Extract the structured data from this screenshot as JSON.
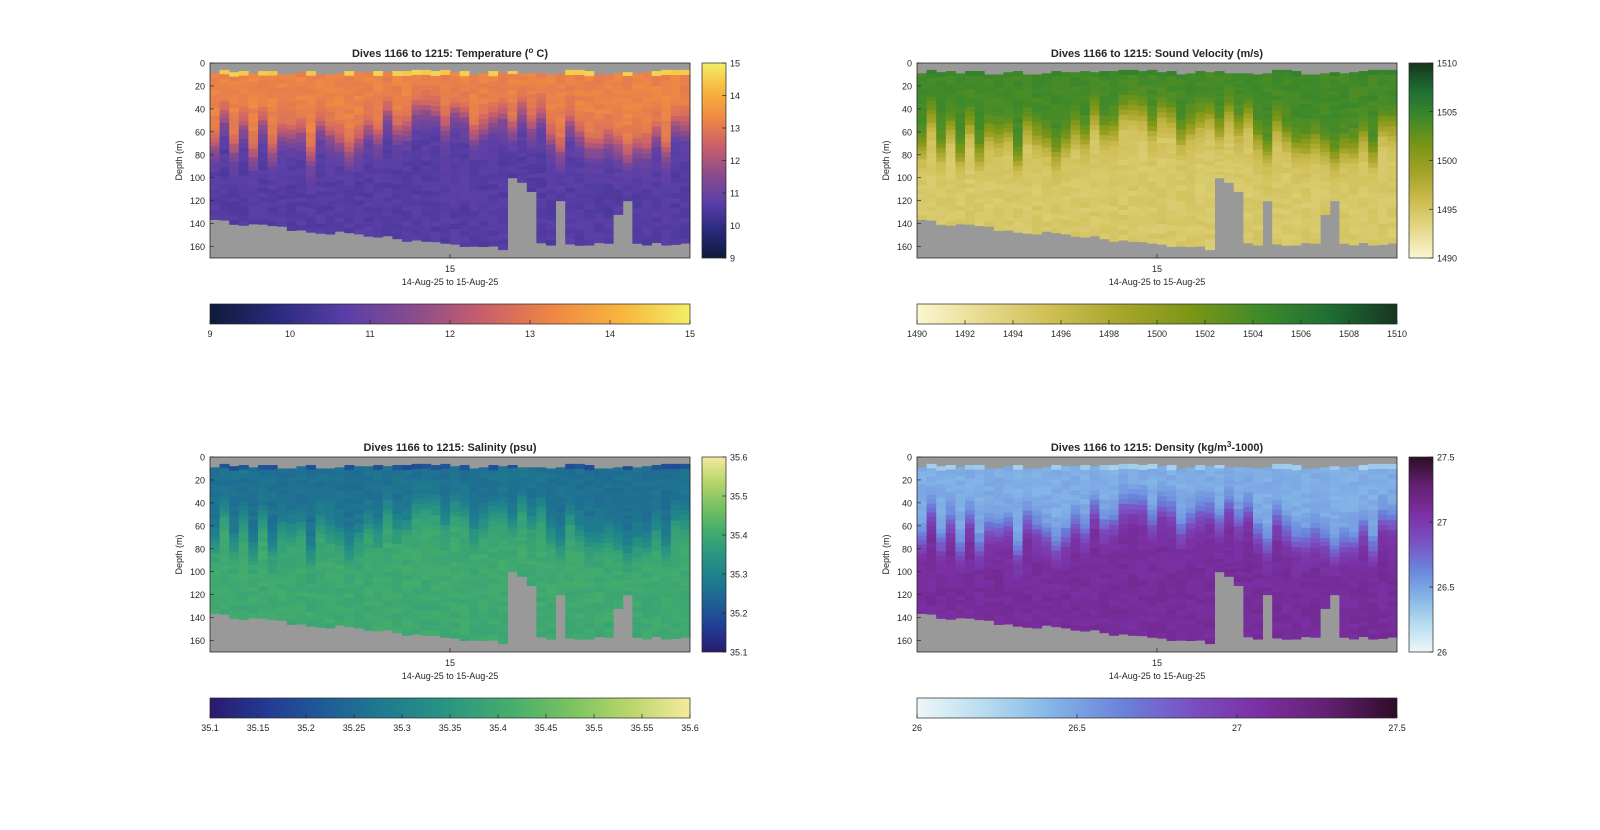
{
  "figure": {
    "dives_label": "Dives 1166 to 1215",
    "depth_label": "Depth (m)",
    "time_label": "14-Aug-25 to 15-Aug-25",
    "time_tick": "15",
    "background": "#ffffff",
    "missing_color": "#999999"
  },
  "chart_data": [
    {
      "type": "heatmap",
      "title_prefix": "Dives 1166 to 1215: Temperature (",
      "title_sup": "o",
      "title_suffix": " C)",
      "xlabel": "14-Aug-25 to 15-Aug-25",
      "ylabel": "Depth (m)",
      "x_ticks": [
        "15"
      ],
      "ylim": [
        0,
        170
      ],
      "y_reversed": true,
      "y_ticks": [
        0,
        20,
        40,
        60,
        80,
        100,
        120,
        140,
        160
      ],
      "clim": [
        9,
        15
      ],
      "colorbar_ticks": [
        9,
        10,
        11,
        12,
        13,
        14,
        15
      ],
      "colormap": [
        "#0e1a3a",
        "#2a2b7e",
        "#5b3fa8",
        "#8b4c8c",
        "#c95f6a",
        "#ef8744",
        "#f7b53e",
        "#f4ee66"
      ],
      "profile": {
        "surface": 14.5,
        "upper": 13.2,
        "thermocline_depth_range": [
          45,
          85
        ],
        "deep": 10.6
      },
      "seafloor_depth_range": [
        133,
        165
      ],
      "num_dives": 50
    },
    {
      "type": "heatmap",
      "title_prefix": "Dives 1166 to 1215: Sound Velocity (m/s)",
      "title_sup": "",
      "title_suffix": "",
      "xlabel": "14-Aug-25 to 15-Aug-25",
      "ylabel": "Depth (m)",
      "x_ticks": [
        "15"
      ],
      "ylim": [
        0,
        170
      ],
      "y_reversed": true,
      "y_ticks": [
        0,
        20,
        40,
        60,
        80,
        100,
        120,
        140,
        160
      ],
      "clim": [
        1490,
        1510
      ],
      "colorbar_ticks": [
        1490,
        1492,
        1494,
        1496,
        1498,
        1500,
        1502,
        1504,
        1506,
        1508,
        1510
      ],
      "colorbar_side_ticks": [
        1490,
        1495,
        1500,
        1505,
        1510
      ],
      "colormap": [
        "#fbf6d0",
        "#e6d98c",
        "#cdbd52",
        "#a6a52a",
        "#7b9616",
        "#3f8a2a",
        "#1f6f34",
        "#16361e"
      ],
      "profile": {
        "surface": 1504.8,
        "upper": 1504.2,
        "thermocline_depth_range": [
          45,
          85
        ],
        "deep": 1494.6
      },
      "seafloor_depth_range": [
        133,
        165
      ],
      "num_dives": 50
    },
    {
      "type": "heatmap",
      "title_prefix": "Dives 1166 to 1215: Salinity (psu)",
      "title_sup": "",
      "title_suffix": "",
      "xlabel": "14-Aug-25 to 15-Aug-25",
      "ylabel": "Depth (m)",
      "x_ticks": [
        "15"
      ],
      "ylim": [
        0,
        170
      ],
      "y_reversed": true,
      "y_ticks": [
        0,
        20,
        40,
        60,
        80,
        100,
        120,
        140,
        160
      ],
      "clim": [
        35.1,
        35.6
      ],
      "colorbar_ticks": [
        "35.1",
        "35.15",
        "35.2",
        "35.25",
        "35.3",
        "35.35",
        "35.4",
        "35.45",
        "35.5",
        "35.55",
        "35.6"
      ],
      "colorbar_side_ticks": [
        "35.1",
        "35.2",
        "35.3",
        "35.4",
        "35.5",
        "35.6"
      ],
      "colormap": [
        "#2a1a6e",
        "#223c95",
        "#1f5f96",
        "#1f7e8e",
        "#2a9680",
        "#45ad6c",
        "#79c262",
        "#b9d66c",
        "#f4ea9e"
      ],
      "profile": {
        "surface": 35.2,
        "upper": 35.26,
        "thermocline_depth_range": [
          40,
          90
        ],
        "deep": 35.4
      },
      "seafloor_depth_range": [
        133,
        165
      ],
      "num_dives": 50
    },
    {
      "type": "heatmap",
      "title_prefix": "Dives 1166 to 1215: Density (kg/m",
      "title_sup": "3",
      "title_suffix": "-1000)",
      "xlabel": "14-Aug-25 to 15-Aug-25",
      "ylabel": "Depth (m)",
      "x_ticks": [
        "15"
      ],
      "ylim": [
        0,
        170
      ],
      "y_reversed": true,
      "y_ticks": [
        0,
        20,
        40,
        60,
        80,
        100,
        120,
        140,
        160
      ],
      "clim": [
        26,
        27.5
      ],
      "colorbar_ticks": [
        "26",
        "26.5",
        "27",
        "27.5"
      ],
      "colorbar_side_ticks": [
        "26",
        "26.5",
        "27",
        "27.5"
      ],
      "colormap": [
        "#eef6f8",
        "#b6dcef",
        "#82b3e6",
        "#6a82db",
        "#7a4fc2",
        "#7a2fa2",
        "#62206f",
        "#2e0c28"
      ],
      "profile": {
        "surface": 26.3,
        "upper": 26.45,
        "thermocline_depth_range": [
          45,
          85
        ],
        "deep": 27.1
      },
      "seafloor_depth_range": [
        133,
        165
      ],
      "num_dives": 50
    }
  ]
}
